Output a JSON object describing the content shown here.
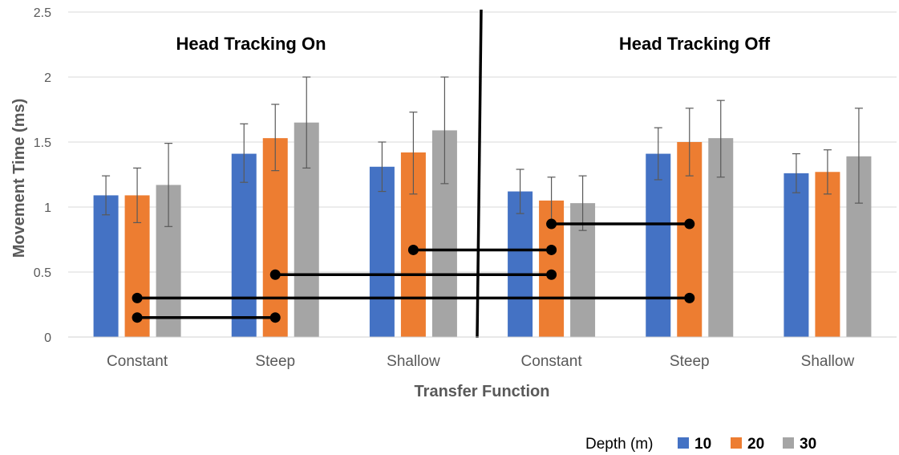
{
  "chart_data": {
    "type": "bar",
    "ylabel": "Movement Time (ms)",
    "xlabel": "Transfer Function",
    "ylim": [
      0,
      2.5
    ],
    "yticks": [
      "0",
      "0.5",
      "1",
      "1.5",
      "2",
      "2.5"
    ],
    "grid": true,
    "categories": [
      "Constant",
      "Steep",
      "Shallow",
      "Constant",
      "Steep",
      "Shallow"
    ],
    "panels": [
      {
        "label": "Head Tracking On",
        "categories": [
          0,
          1,
          2
        ]
      },
      {
        "label": "Head Tracking Off",
        "categories": [
          3,
          4,
          5
        ]
      }
    ],
    "legend": {
      "title": "Depth (m)",
      "position": "bottom-right"
    },
    "series": [
      {
        "name": "10",
        "color": "#4472C4",
        "values": [
          1.09,
          1.41,
          1.31,
          1.12,
          1.41,
          1.26
        ],
        "error_low": [
          0.94,
          1.19,
          1.12,
          0.95,
          1.21,
          1.11
        ],
        "error_high": [
          1.24,
          1.64,
          1.5,
          1.29,
          1.61,
          1.41
        ]
      },
      {
        "name": "20",
        "color": "#ED7D31",
        "values": [
          1.09,
          1.53,
          1.42,
          1.05,
          1.5,
          1.27
        ],
        "error_low": [
          0.88,
          1.28,
          1.1,
          0.86,
          1.24,
          1.1
        ],
        "error_high": [
          1.3,
          1.79,
          1.73,
          1.23,
          1.76,
          1.44
        ]
      },
      {
        "name": "30",
        "color": "#A5A5A5",
        "values": [
          1.17,
          1.65,
          1.59,
          1.03,
          1.53,
          1.39
        ],
        "error_low": [
          0.85,
          1.3,
          1.18,
          0.82,
          1.23,
          1.03
        ],
        "error_high": [
          1.49,
          2.0,
          2.0,
          1.24,
          1.82,
          1.76
        ]
      }
    ],
    "significance_lines": [
      {
        "from": [
          0,
          "20"
        ],
        "to": [
          1,
          "20"
        ],
        "y": 0.15
      },
      {
        "from": [
          0,
          "20"
        ],
        "to": [
          4,
          "20"
        ],
        "y": 0.3
      },
      {
        "from": [
          1,
          "20"
        ],
        "to": [
          3,
          "20"
        ],
        "y": 0.48
      },
      {
        "from": [
          2,
          "20"
        ],
        "to": [
          3,
          "20"
        ],
        "y": 0.67
      },
      {
        "from": [
          3,
          "20"
        ],
        "to": [
          4,
          "20"
        ],
        "y": 0.87
      }
    ]
  }
}
